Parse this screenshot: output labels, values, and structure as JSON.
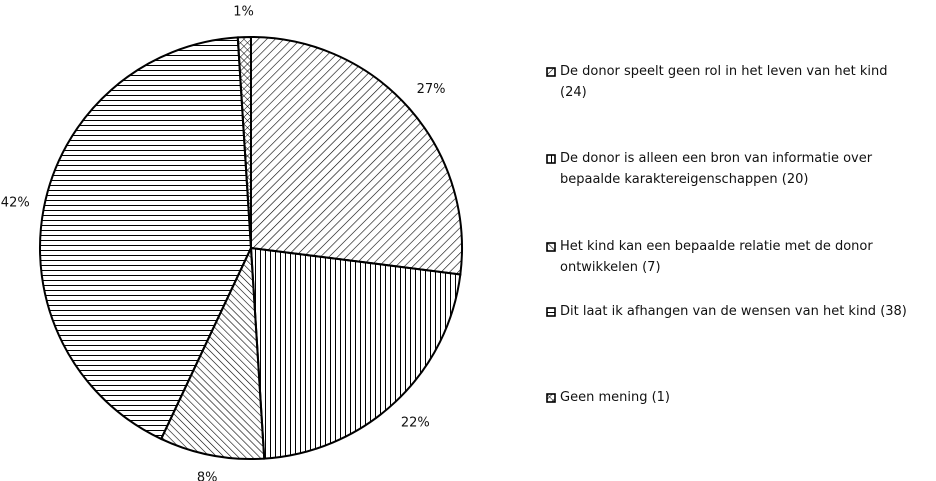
{
  "chart_data": {
    "type": "pie",
    "categories": [
      "De donor speelt geen rol in het leven van het kind (24)",
      "De donor is alleen een bron van informatie over bepaalde karaktereigenschappen (20)",
      "Het kind kan een bepaalde relatie met de donor ontwikkelen (7)",
      "Dit laat ik afhangen van de wensen van het kind (38)",
      "Geen mening (1)"
    ],
    "values": [
      27,
      22,
      8,
      42,
      1
    ],
    "value_labels": [
      "27%",
      "22%",
      "8%",
      "42%",
      "1%"
    ],
    "hatches": [
      "backdiagonal",
      "vertical",
      "diagonal",
      "horizontal",
      "crosshatch"
    ],
    "color": "#000000"
  }
}
